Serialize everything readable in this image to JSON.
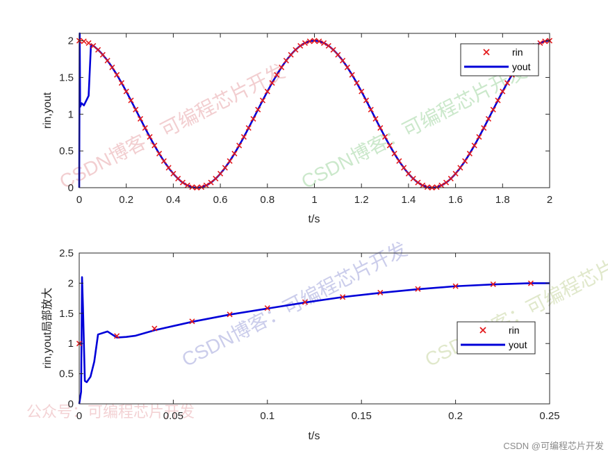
{
  "watermarks": {
    "site_text": "CSDN博客：可编程芯片开发",
    "account_text": "公众号：可编程芯片开发",
    "credit": "CSDN @可编程芯片开发"
  },
  "colors": {
    "rin": "#e31a1c",
    "yout": "#0000d8",
    "axes": "#262626"
  },
  "chart_data": [
    {
      "type": "line",
      "title": "",
      "xlabel": "t/s",
      "ylabel": "rin,yout",
      "xlim": [
        0,
        2
      ],
      "ylim": [
        0,
        2.1
      ],
      "xticks": [
        0,
        0.2,
        0.4,
        0.6,
        0.8,
        1,
        1.2,
        1.4,
        1.6,
        1.8,
        2
      ],
      "xtick_labels": [
        "0",
        "0.2",
        "0.4",
        "0.6",
        "0.8",
        "1",
        "1.2",
        "1.4",
        "1.6",
        "1.8",
        "2"
      ],
      "yticks": [
        0,
        0.5,
        1,
        1.5,
        2
      ],
      "ytick_labels": [
        "0",
        "0.5",
        "1",
        "1.5",
        "2"
      ],
      "legend": "top-right",
      "grid": false,
      "series": [
        {
          "name": "rin",
          "style": "x-marker",
          "formula": "1 + sin(2*pi*t - pi/2 + pi)",
          "x_start": 0,
          "x_end": 2,
          "x_step": 0.02
        },
        {
          "name": "yout",
          "style": "line",
          "formula": "1 + sin(2*pi*t - pi/2 + pi)",
          "x_start": 0,
          "x_end": 2,
          "initial_transient": [
            [
              0,
              0
            ],
            [
              0.002,
              2.1
            ],
            [
              0.004,
              1.1
            ],
            [
              0.01,
              1.15
            ],
            [
              0.02,
              1.12
            ],
            [
              0.04,
              1.25
            ]
          ]
        }
      ]
    },
    {
      "type": "line",
      "title": "",
      "xlabel": "t/s",
      "ylabel": "rin,yout局部放大",
      "xlim": [
        0,
        0.25
      ],
      "ylim": [
        0,
        2.5
      ],
      "xticks": [
        0,
        0.05,
        0.1,
        0.15,
        0.2,
        0.25
      ],
      "xtick_labels": [
        "0",
        "0.05",
        "0.1",
        "0.15",
        "0.2",
        "0.25"
      ],
      "yticks": [
        0,
        0.5,
        1,
        1.5,
        2,
        2.5
      ],
      "ytick_labels": [
        "0",
        "0.5",
        "1",
        "1.5",
        "2",
        "2.5"
      ],
      "legend": "right",
      "grid": false,
      "series": [
        {
          "name": "rin",
          "style": "x-marker",
          "x": [
            0,
            0.02,
            0.04,
            0.06,
            0.08,
            0.1,
            0.12,
            0.14,
            0.16,
            0.18,
            0.2,
            0.22,
            0.24
          ],
          "y": [
            1.0,
            1.125,
            1.249,
            1.368,
            1.482,
            1.588,
            1.685,
            1.771,
            1.844,
            1.905,
            1.951,
            1.982,
            1.998
          ]
        },
        {
          "name": "yout",
          "style": "line",
          "x": [
            0,
            0.001,
            0.0015,
            0.002,
            0.003,
            0.004,
            0.006,
            0.008,
            0.01,
            0.015,
            0.02,
            0.025,
            0.03,
            0.04,
            0.06,
            0.08,
            0.1,
            0.12,
            0.14,
            0.16,
            0.18,
            0.2,
            0.22,
            0.24,
            0.25
          ],
          "y": [
            0,
            0.2,
            2.1,
            1.6,
            0.38,
            0.36,
            0.45,
            0.7,
            1.15,
            1.2,
            1.1,
            1.11,
            1.13,
            1.22,
            1.36,
            1.48,
            1.58,
            1.68,
            1.77,
            1.84,
            1.9,
            1.95,
            1.98,
            2.0,
            2.0
          ]
        }
      ]
    }
  ]
}
